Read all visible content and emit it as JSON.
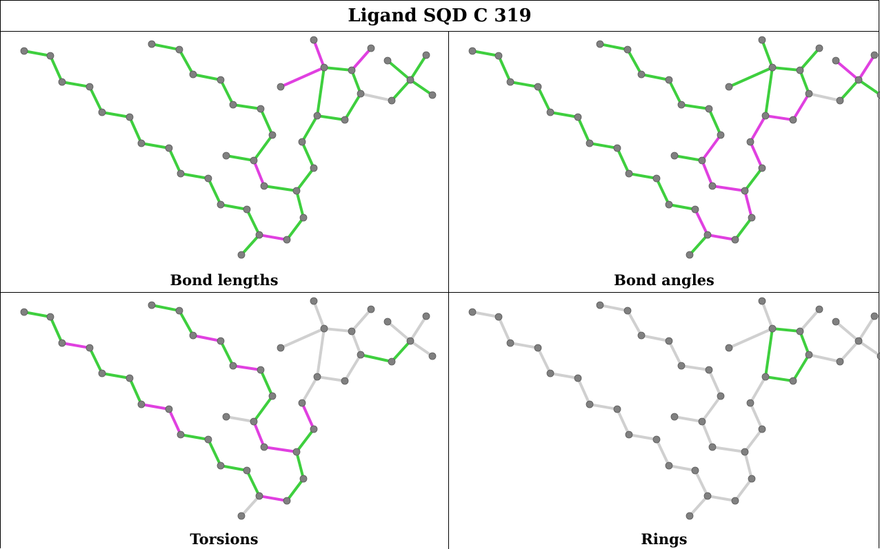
{
  "title": "Ligand SQD C 319",
  "panels": [
    {
      "caption": "Bond lengths"
    },
    {
      "caption": "Bond angles"
    },
    {
      "caption": "Torsions"
    },
    {
      "caption": "Rings"
    }
  ],
  "colors": {
    "green": "#3ecf3e",
    "magenta": "#e040e0",
    "gray_bond": "#d0d0d0",
    "atom": "#808080"
  }
}
